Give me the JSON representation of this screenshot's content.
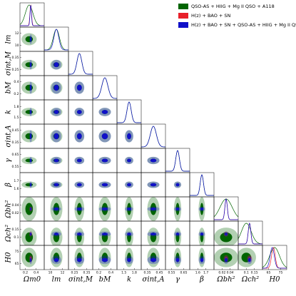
{
  "chart_data": {
    "type": "corner",
    "parameters": [
      {
        "label": "Ωm0",
        "lim": [
          0.1,
          0.55
        ],
        "ticks": [
          0.2,
          0.4
        ]
      },
      {
        "label": "lm",
        "lim": [
          9,
          13
        ],
        "ticks": [
          10,
          12
        ]
      },
      {
        "label": "σint,M",
        "lim": [
          0.2,
          0.4
        ],
        "ticks": [
          0.25,
          0.35
        ]
      },
      {
        "label": "bM",
        "lim": [
          0.1,
          0.5
        ],
        "ticks": [
          0.2,
          0.4
        ]
      },
      {
        "label": "k",
        "lim": [
          1.3,
          2.0
        ],
        "ticks": [
          1.5,
          1.8
        ]
      },
      {
        "label": "σint,A",
        "lim": [
          0.3,
          0.5
        ],
        "ticks": [
          0.35,
          0.45
        ]
      },
      {
        "label": "γ",
        "lim": [
          0.5,
          0.7
        ],
        "ticks": [
          0.55,
          0.65
        ]
      },
      {
        "label": "β",
        "lim": [
          1.5,
          1.8
        ],
        "ticks": [
          1.6,
          1.7
        ]
      },
      {
        "label": "Ωbh²",
        "lim": [
          0,
          0.06
        ],
        "ticks": [
          0.02,
          0.04
        ]
      },
      {
        "label": "Ωch²",
        "lim": [
          0.05,
          0.2
        ],
        "ticks": [
          0.1,
          0.15
        ]
      },
      {
        "label": "H0",
        "lim": [
          60,
          80
        ],
        "ticks": [
          65,
          75
        ]
      }
    ],
    "series": [
      {
        "name": "QSO-AS + HIIG + Mg II QSO + A118",
        "color": "#006400",
        "means": [
          0.27,
          11.0,
          0.29,
          0.3,
          1.65,
          0.4,
          0.6,
          1.65,
          0.03,
          0.1,
          70
        ],
        "sigmas": [
          0.07,
          0.5,
          0.02,
          0.05,
          0.06,
          0.025,
          0.015,
          0.02,
          0.015,
          0.03,
          4
        ]
      },
      {
        "name": "H(z) + BAO + SN",
        "color": "#e8202a",
        "means": [
          0.3,
          null,
          null,
          null,
          null,
          null,
          null,
          null,
          0.03,
          0.12,
          69
        ],
        "sigmas": [
          0.015,
          null,
          null,
          null,
          null,
          null,
          null,
          null,
          0.003,
          0.008,
          1.5
        ]
      },
      {
        "name": "H(z) + BAO + SN + QSO-AS + HIIG + Mg II QSO + A118",
        "color": "#1010c8",
        "means": [
          0.3,
          11.0,
          0.29,
          0.3,
          1.65,
          0.4,
          0.6,
          1.65,
          0.03,
          0.12,
          68
        ],
        "sigmas": [
          0.013,
          0.4,
          0.02,
          0.05,
          0.06,
          0.025,
          0.015,
          0.02,
          0.003,
          0.008,
          1.7
        ]
      }
    ]
  }
}
